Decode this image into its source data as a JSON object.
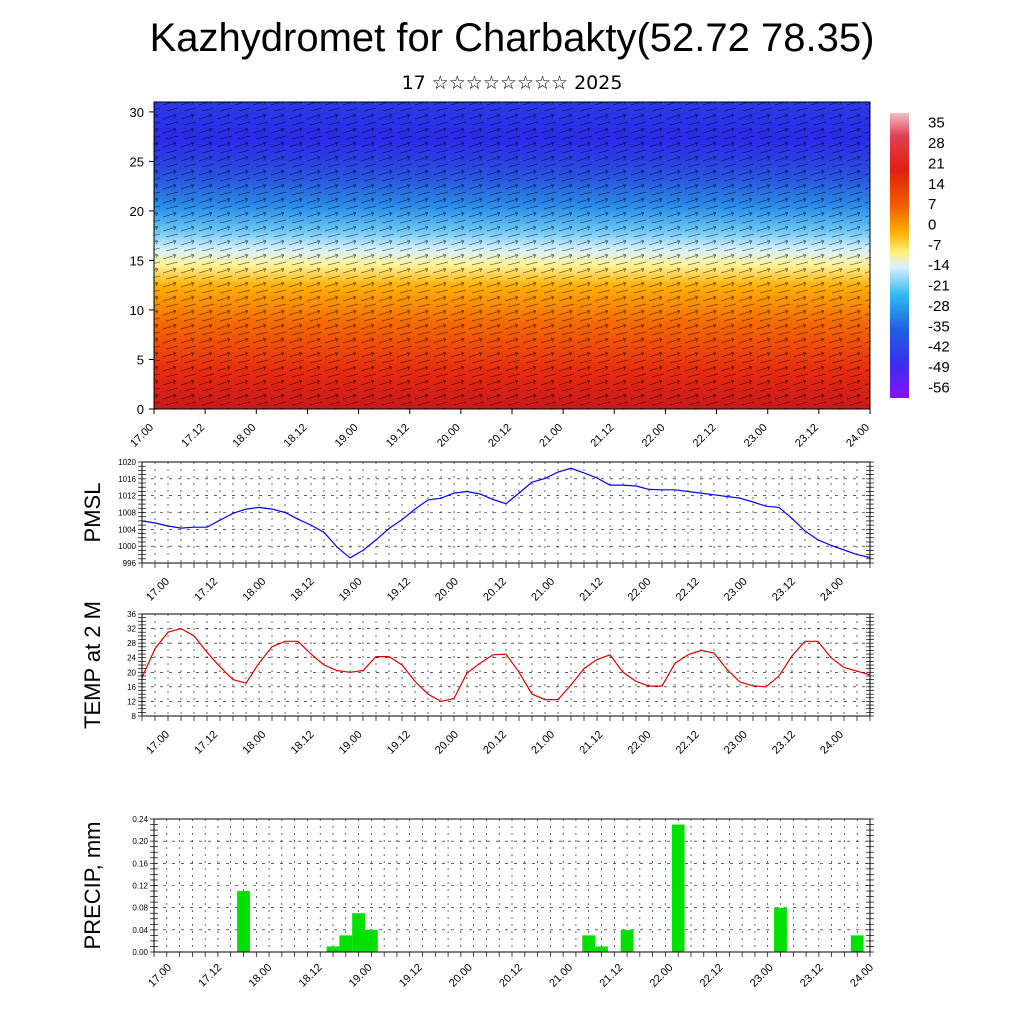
{
  "title": "Kazhydromet for Charbakty(52.72 78.35)",
  "subtitle": "17 ☆☆☆☆☆☆☆☆ 2025",
  "time_ticks": [
    "17.00",
    "17.12",
    "18.00",
    "18.12",
    "19.00",
    "19.12",
    "20.00",
    "20.12",
    "21.00",
    "21.12",
    "22.00",
    "22.12",
    "23.00",
    "23.12",
    "24.00"
  ],
  "colors": {
    "pmsl_line": "#0000ff",
    "temp_line": "#e00000",
    "precip_bar": "#00e000",
    "cross_section_scale": [
      "#e8a0a8",
      "#d81818",
      "#f05000",
      "#ffb000",
      "#fff080",
      "#c8ecff",
      "#20b0f0",
      "#2050e0",
      "#5000f0",
      "#9000ff"
    ]
  },
  "chart_data": [
    {
      "type": "heatmap",
      "name": "vertical-cross-section",
      "title": "",
      "xlabel": "",
      "ylabel": "",
      "x": [
        "17.00",
        "17.12",
        "18.00",
        "18.12",
        "19.00",
        "19.12",
        "20.00",
        "20.12",
        "21.00",
        "21.12",
        "22.00",
        "22.12",
        "23.00",
        "23.12",
        "24.00"
      ],
      "ylim": [
        0,
        31
      ],
      "yticks": [
        "0",
        "5",
        "10",
        "15",
        "20",
        "25",
        "30"
      ],
      "colorbar_labels": [
        "35",
        "28",
        "21",
        "14",
        "7",
        "0",
        "-7",
        "-14",
        "-21",
        "-28",
        "-35",
        "-42",
        "-49",
        "-56"
      ],
      "colorbar_range": [
        -60,
        38
      ],
      "overlay": "wind vectors"
    },
    {
      "type": "line",
      "name": "pmsl",
      "ylabel": "PMSL",
      "ylim": [
        996,
        1020
      ],
      "yticks": [
        "996",
        "1000",
        "1004",
        "1008",
        "1012",
        "1016",
        "1020"
      ],
      "x": [
        "17.00",
        "17.03",
        "17.06",
        "17.09",
        "17.12",
        "17.15",
        "17.18",
        "17.21",
        "18.00",
        "18.03",
        "18.06",
        "18.09",
        "18.12",
        "18.15",
        "18.18",
        "18.21",
        "19.00",
        "19.03",
        "19.06",
        "19.09",
        "19.12",
        "19.15",
        "19.18",
        "19.21",
        "20.00",
        "20.03",
        "20.06",
        "20.09",
        "20.12",
        "20.15",
        "20.18",
        "20.21",
        "21.00",
        "21.03",
        "21.06",
        "21.09",
        "21.12",
        "21.15",
        "21.18",
        "21.21",
        "22.00",
        "22.03",
        "22.06",
        "22.09",
        "22.12",
        "22.15",
        "22.18",
        "22.21",
        "23.00",
        "23.03",
        "23.06",
        "23.09",
        "23.12",
        "23.15",
        "23.18",
        "23.21",
        "24.00"
      ],
      "values": [
        1006.0,
        1005.5,
        1004.8,
        1004.3,
        1004.5,
        1004.5,
        1006.2,
        1007.8,
        1008.8,
        1009.2,
        1008.8,
        1008.0,
        1006.4,
        1005.0,
        1003.3,
        999.8,
        997.2,
        999.0,
        1001.5,
        1004.2,
        1006.3,
        1008.8,
        1011.0,
        1011.4,
        1012.6,
        1013.0,
        1012.4,
        1011.1,
        1010.1,
        1012.6,
        1015.2,
        1016.1,
        1017.6,
        1018.5,
        1017.4,
        1016.2,
        1014.5,
        1014.5,
        1014.3,
        1013.5,
        1013.4,
        1013.4,
        1013.0,
        1012.6,
        1012.2,
        1011.8,
        1011.4,
        1010.5,
        1009.5,
        1009.2,
        1006.6,
        1003.6,
        1001.5,
        1000.2,
        999.1,
        998.0,
        997.3
      ]
    },
    {
      "type": "line",
      "name": "temp-2m",
      "ylabel": "TEMP at 2 M",
      "ylim": [
        8,
        36
      ],
      "yticks": [
        "8",
        "12",
        "16",
        "20",
        "24",
        "28",
        "32",
        "36"
      ],
      "x": [
        "17.00",
        "17.03",
        "17.06",
        "17.09",
        "17.12",
        "17.15",
        "17.18",
        "17.21",
        "18.00",
        "18.03",
        "18.06",
        "18.09",
        "18.12",
        "18.15",
        "18.18",
        "18.21",
        "19.00",
        "19.03",
        "19.06",
        "19.09",
        "19.12",
        "19.15",
        "19.18",
        "19.21",
        "20.00",
        "20.03",
        "20.06",
        "20.09",
        "20.12",
        "20.15",
        "20.18",
        "20.21",
        "21.00",
        "21.03",
        "21.06",
        "21.09",
        "21.12",
        "21.15",
        "21.18",
        "21.21",
        "22.00",
        "22.03",
        "22.06",
        "22.09",
        "22.12",
        "22.15",
        "22.18",
        "22.21",
        "23.00",
        "23.03",
        "23.06",
        "23.09",
        "23.12",
        "23.15",
        "23.18",
        "23.21",
        "24.00"
      ],
      "values": [
        18.5,
        26.5,
        31.0,
        32.0,
        30.0,
        25.5,
        21.5,
        18.0,
        17.0,
        22.5,
        27.0,
        28.5,
        28.5,
        25.0,
        22.0,
        20.5,
        20.0,
        20.5,
        24.3,
        24.3,
        22.0,
        17.5,
        14.0,
        12.0,
        12.8,
        19.8,
        22.5,
        24.8,
        25.0,
        20.0,
        14.0,
        12.5,
        12.5,
        16.5,
        21.0,
        23.5,
        24.8,
        20.0,
        17.5,
        16.2,
        16.2,
        22.5,
        24.8,
        26.0,
        25.3,
        20.8,
        17.3,
        16.3,
        16.0,
        19.0,
        24.5,
        28.5,
        28.5,
        24.0,
        21.3,
        20.3,
        19.3
      ]
    },
    {
      "type": "bar",
      "name": "precip",
      "ylabel": "PRECIP, mm",
      "ylim": [
        0,
        0.24
      ],
      "yticks": [
        "0.00",
        "0.04",
        "0.08",
        "0.12",
        "0.16",
        "0.20",
        "0.24"
      ],
      "x": [
        "17.00",
        "17.03",
        "17.06",
        "17.09",
        "17.12",
        "17.15",
        "17.18",
        "17.21",
        "18.00",
        "18.03",
        "18.06",
        "18.09",
        "18.12",
        "18.15",
        "18.18",
        "18.21",
        "19.00",
        "19.03",
        "19.06",
        "19.09",
        "19.12",
        "19.15",
        "19.18",
        "19.21",
        "20.00",
        "20.03",
        "20.06",
        "20.09",
        "20.12",
        "20.15",
        "20.18",
        "20.21",
        "21.00",
        "21.03",
        "21.06",
        "21.09",
        "21.12",
        "21.15",
        "21.18",
        "21.21",
        "22.00",
        "22.03",
        "22.06",
        "22.09",
        "22.12",
        "22.15",
        "22.18",
        "22.21",
        "23.00",
        "23.03",
        "23.06",
        "23.09",
        "23.12",
        "23.15",
        "23.18",
        "23.21",
        "24.00"
      ],
      "values": [
        0,
        0,
        0,
        0,
        0,
        0,
        0,
        0.11,
        0,
        0,
        0,
        0,
        0,
        0,
        0.01,
        0.03,
        0.07,
        0.04,
        0,
        0,
        0,
        0,
        0,
        0,
        0,
        0,
        0,
        0,
        0,
        0,
        0,
        0,
        0,
        0,
        0.03,
        0.01,
        0,
        0.04,
        0,
        0,
        0,
        0.23,
        0,
        0,
        0,
        0,
        0,
        0,
        0,
        0.08,
        0,
        0,
        0,
        0,
        0,
        0.03,
        0
      ]
    }
  ]
}
